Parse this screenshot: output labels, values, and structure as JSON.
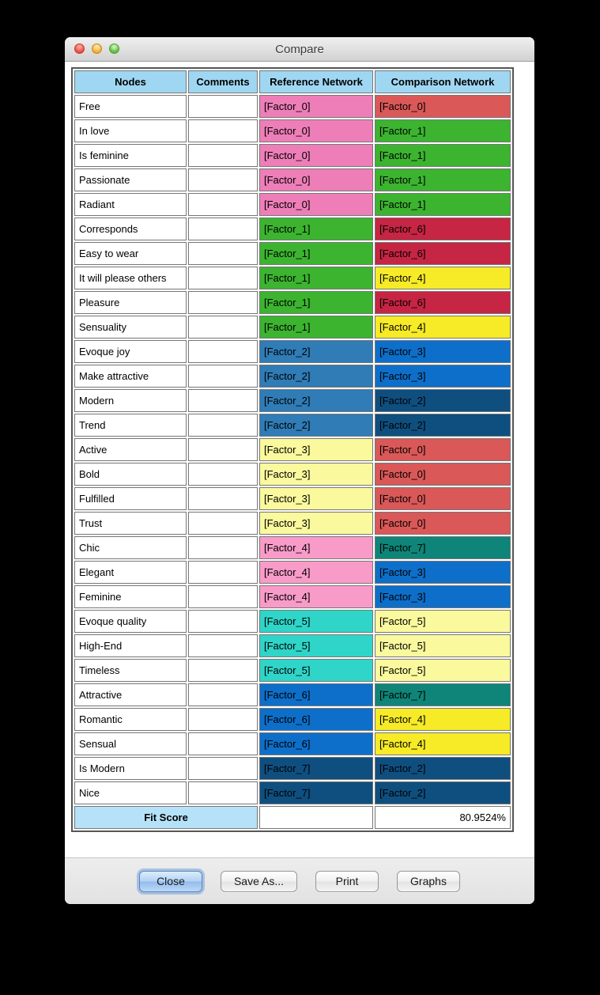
{
  "window": {
    "title": "Compare",
    "traffic_lights": [
      "close",
      "minimize",
      "zoom"
    ]
  },
  "table": {
    "headers": [
      "Nodes",
      "Comments",
      "Reference Network",
      "Comparison Network"
    ],
    "rows": [
      {
        "node": "Free",
        "comment": "",
        "reference": "[Factor_0]",
        "comparison": "[Factor_0]"
      },
      {
        "node": "In love",
        "comment": "",
        "reference": "[Factor_0]",
        "comparison": "[Factor_1]"
      },
      {
        "node": "Is feminine",
        "comment": "",
        "reference": "[Factor_0]",
        "comparison": "[Factor_1]"
      },
      {
        "node": "Passionate",
        "comment": "",
        "reference": "[Factor_0]",
        "comparison": "[Factor_1]"
      },
      {
        "node": "Radiant",
        "comment": "",
        "reference": "[Factor_0]",
        "comparison": "[Factor_1]"
      },
      {
        "node": "Corresponds",
        "comment": "",
        "reference": "[Factor_1]",
        "comparison": "[Factor_6]"
      },
      {
        "node": "Easy to wear",
        "comment": "",
        "reference": "[Factor_1]",
        "comparison": "[Factor_6]"
      },
      {
        "node": "It will please others",
        "comment": "",
        "reference": "[Factor_1]",
        "comparison": "[Factor_4]"
      },
      {
        "node": "Pleasure",
        "comment": "",
        "reference": "[Factor_1]",
        "comparison": "[Factor_6]"
      },
      {
        "node": "Sensuality",
        "comment": "",
        "reference": "[Factor_1]",
        "comparison": "[Factor_4]"
      },
      {
        "node": "Evoque joy",
        "comment": "",
        "reference": "[Factor_2]",
        "comparison": "[Factor_3]"
      },
      {
        "node": "Make attractive",
        "comment": "",
        "reference": "[Factor_2]",
        "comparison": "[Factor_3]"
      },
      {
        "node": "Modern",
        "comment": "",
        "reference": "[Factor_2]",
        "comparison": "[Factor_2]"
      },
      {
        "node": "Trend",
        "comment": "",
        "reference": "[Factor_2]",
        "comparison": "[Factor_2]"
      },
      {
        "node": "Active",
        "comment": "",
        "reference": "[Factor_3]",
        "comparison": "[Factor_0]"
      },
      {
        "node": "Bold",
        "comment": "",
        "reference": "[Factor_3]",
        "comparison": "[Factor_0]"
      },
      {
        "node": "Fulfilled",
        "comment": "",
        "reference": "[Factor_3]",
        "comparison": "[Factor_0]"
      },
      {
        "node": "Trust",
        "comment": "",
        "reference": "[Factor_3]",
        "comparison": "[Factor_0]"
      },
      {
        "node": "Chic",
        "comment": "",
        "reference": "[Factor_4]",
        "comparison": "[Factor_7]"
      },
      {
        "node": "Elegant",
        "comment": "",
        "reference": "[Factor_4]",
        "comparison": "[Factor_3]"
      },
      {
        "node": "Feminine",
        "comment": "",
        "reference": "[Factor_4]",
        "comparison": "[Factor_3]"
      },
      {
        "node": "Evoque quality",
        "comment": "",
        "reference": "[Factor_5]",
        "comparison": "[Factor_5]"
      },
      {
        "node": "High-End",
        "comment": "",
        "reference": "[Factor_5]",
        "comparison": "[Factor_5]"
      },
      {
        "node": "Timeless",
        "comment": "",
        "reference": "[Factor_5]",
        "comparison": "[Factor_5]"
      },
      {
        "node": "Attractive",
        "comment": "",
        "reference": "[Factor_6]",
        "comparison": "[Factor_7]"
      },
      {
        "node": "Romantic",
        "comment": "",
        "reference": "[Factor_6]",
        "comparison": "[Factor_4]"
      },
      {
        "node": "Sensual",
        "comment": "",
        "reference": "[Factor_6]",
        "comparison": "[Factor_4]"
      },
      {
        "node": "Is Modern",
        "comment": "",
        "reference": "[Factor_7]",
        "comparison": "[Factor_2]"
      },
      {
        "node": "Nice",
        "comment": "",
        "reference": "[Factor_7]",
        "comparison": "[Factor_2]"
      }
    ],
    "footer": {
      "label": "Fit Score",
      "comment": "",
      "score": "80.9524%"
    }
  },
  "palette": {
    "header_bg": "#9FD7F2",
    "fit_bg": "#B5E2F8",
    "reference": {
      "[Factor_0]": "#EE7EB8",
      "[Factor_1]": "#3CB430",
      "[Factor_2]": "#2F7CB6",
      "[Factor_3]": "#FAF99D",
      "[Factor_4]": "#F99BC9",
      "[Factor_5]": "#2FD5C8",
      "[Factor_6]": "#0D6FC9",
      "[Factor_7]": "#0F4F7F"
    },
    "comparison": {
      "[Factor_0]": "#DA5858",
      "[Factor_1]": "#3CB430",
      "[Factor_2]": "#0F4F7F",
      "[Factor_3]": "#0D6FC9",
      "[Factor_4]": "#F6EB26",
      "[Factor_5]": "#FAF99D",
      "[Factor_6]": "#C62543",
      "[Factor_7]": "#0E8578"
    }
  },
  "buttons": [
    {
      "label": "Close",
      "default": true
    },
    {
      "label": "Save As...",
      "default": false
    },
    {
      "label": "Print",
      "default": false
    },
    {
      "label": "Graphs",
      "default": false
    }
  ]
}
